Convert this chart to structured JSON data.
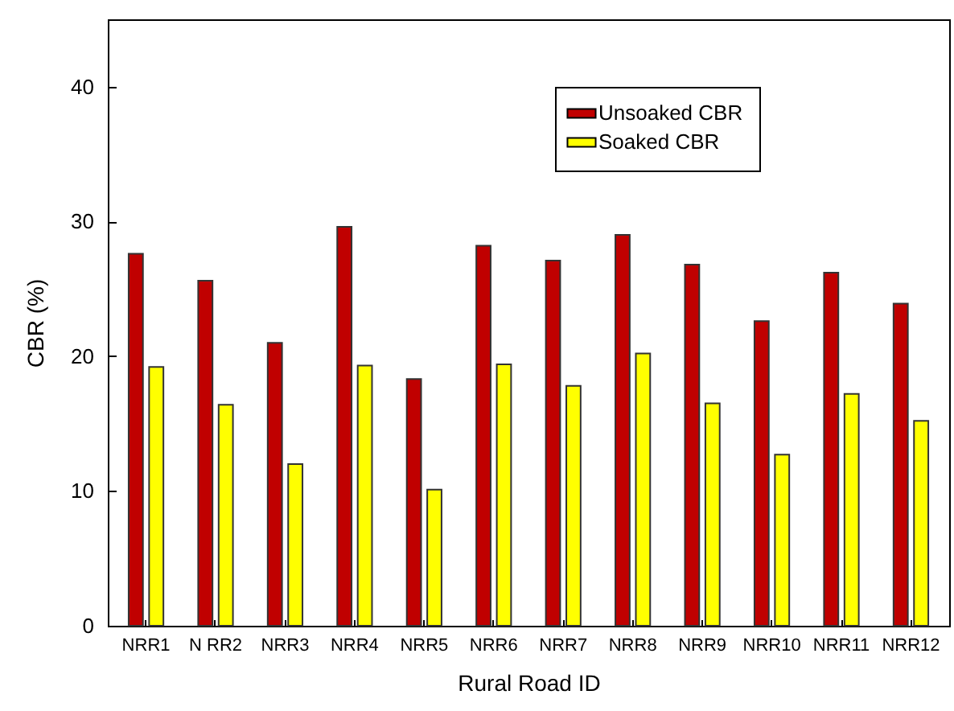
{
  "chart_data": {
    "type": "bar",
    "xlabel": "Rural Road ID",
    "ylabel": "CBR (%)",
    "categories": [
      "NRR1",
      "N RR2",
      "NRR3",
      "NRR4",
      "NRR5",
      "NRR6",
      "NRR7",
      "NRR8",
      "NRR9",
      "NRR10",
      "NRR11",
      "NRR12"
    ],
    "series": [
      {
        "name": "Unsoaked CBR",
        "color": "#c00000",
        "values": [
          27.6,
          25.6,
          21.0,
          29.6,
          18.3,
          28.2,
          27.1,
          29.0,
          26.8,
          22.6,
          26.2,
          23.9
        ]
      },
      {
        "name": "Soaked CBR",
        "color": "#ffff00",
        "values": [
          19.2,
          16.4,
          12.0,
          19.3,
          10.1,
          19.4,
          17.8,
          20.2,
          16.5,
          12.7,
          17.2,
          15.2
        ]
      }
    ],
    "ylim": [
      0,
      45
    ],
    "yticks": [
      0,
      10,
      20,
      30,
      40
    ],
    "grid": false,
    "legend": "top right"
  }
}
